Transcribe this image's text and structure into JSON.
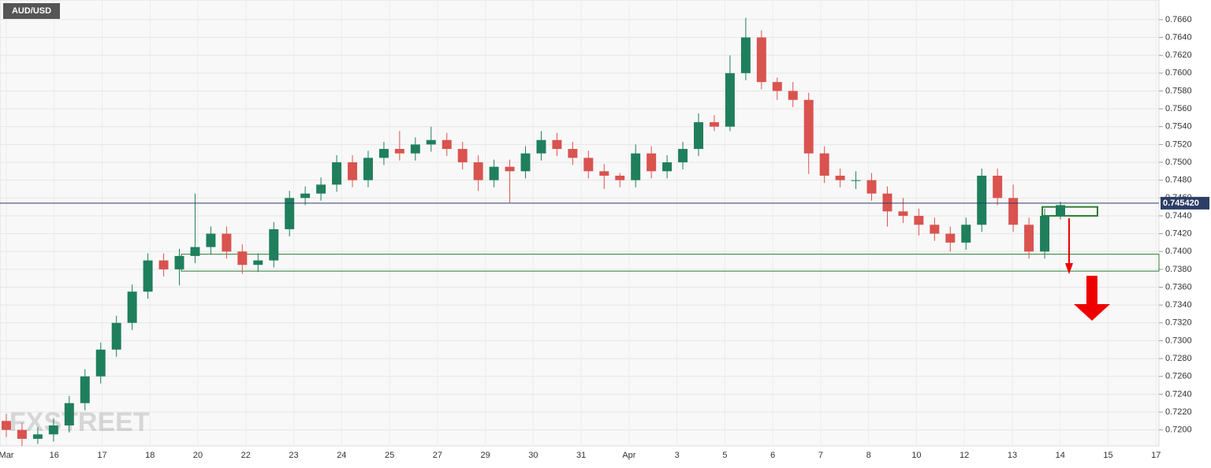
{
  "chart_data": {
    "type": "candlestick",
    "title": "AUD/USD",
    "watermark": "FXSTREET",
    "x_labels": [
      "Mar",
      "16",
      "17",
      "18",
      "20",
      "22",
      "23",
      "24",
      "25",
      "27",
      "29",
      "30",
      "31",
      "Apr",
      "3",
      "5",
      "6",
      "7",
      "8",
      "10",
      "12",
      "13",
      "14",
      "15",
      "17"
    ],
    "open": [
      0.721,
      0.72,
      0.719,
      0.7195,
      0.7205,
      0.723,
      0.726,
      0.729,
      0.732,
      0.7355,
      0.739,
      0.738,
      0.7395,
      0.7405,
      0.742,
      0.74,
      0.7385,
      0.739,
      0.7425,
      0.746,
      0.7465,
      0.7475,
      0.75,
      0.748,
      0.7505,
      0.7515,
      0.751,
      0.752,
      0.7525,
      0.7515,
      0.75,
      0.748,
      0.7495,
      0.749,
      0.751,
      0.7525,
      0.7515,
      0.7505,
      0.749,
      0.7485,
      0.748,
      0.751,
      0.749,
      0.75,
      0.7515,
      0.7545,
      0.754,
      0.76,
      0.764,
      0.759,
      0.758,
      0.757,
      0.751,
      0.7485,
      0.748,
      0.748,
      0.7465,
      0.7445,
      0.744,
      0.743,
      0.742,
      0.741,
      0.743,
      0.7485,
      0.746,
      0.743,
      0.74,
      0.744
    ],
    "high": [
      0.7218,
      0.7208,
      0.7203,
      0.7213,
      0.7238,
      0.7268,
      0.7298,
      0.7328,
      0.7363,
      0.7398,
      0.7398,
      0.7403,
      0.7465,
      0.7428,
      0.7428,
      0.7408,
      0.7398,
      0.7433,
      0.7468,
      0.7473,
      0.7483,
      0.7508,
      0.7508,
      0.7513,
      0.7523,
      0.7535,
      0.7528,
      0.754,
      0.7533,
      0.7523,
      0.7508,
      0.7503,
      0.7503,
      0.7518,
      0.7535,
      0.7533,
      0.7523,
      0.7513,
      0.7498,
      0.7488,
      0.752,
      0.7518,
      0.7508,
      0.7523,
      0.7555,
      0.7553,
      0.762,
      0.7662,
      0.7648,
      0.7595,
      0.759,
      0.7578,
      0.7518,
      0.7493,
      0.749,
      0.7488,
      0.7473,
      0.746,
      0.7448,
      0.7438,
      0.7428,
      0.7438,
      0.7493,
      0.7493,
      0.7475,
      0.7438,
      0.7448,
      0.7456
    ],
    "low": [
      0.7192,
      0.7182,
      0.7184,
      0.7187,
      0.7197,
      0.7222,
      0.7252,
      0.7282,
      0.7312,
      0.7347,
      0.7372,
      0.7362,
      0.7387,
      0.7397,
      0.7392,
      0.7375,
      0.7377,
      0.7382,
      0.7417,
      0.7452,
      0.7457,
      0.7467,
      0.7472,
      0.7472,
      0.7497,
      0.7502,
      0.7502,
      0.7512,
      0.7507,
      0.7492,
      0.7468,
      0.7472,
      0.7455,
      0.7482,
      0.7502,
      0.7507,
      0.7497,
      0.7482,
      0.747,
      0.7472,
      0.7472,
      0.7482,
      0.7482,
      0.7492,
      0.7507,
      0.7535,
      0.7535,
      0.7592,
      0.7582,
      0.757,
      0.7562,
      0.7487,
      0.7477,
      0.7472,
      0.747,
      0.7457,
      0.7428,
      0.7432,
      0.7418,
      0.7412,
      0.74,
      0.7402,
      0.7422,
      0.7452,
      0.7422,
      0.7392,
      0.7392,
      0.7436
    ],
    "close": [
      0.72,
      0.719,
      0.7195,
      0.7205,
      0.723,
      0.726,
      0.729,
      0.732,
      0.7355,
      0.739,
      0.738,
      0.7395,
      0.7405,
      0.742,
      0.74,
      0.7385,
      0.739,
      0.7425,
      0.746,
      0.7465,
      0.7475,
      0.75,
      0.748,
      0.7505,
      0.7515,
      0.751,
      0.752,
      0.7525,
      0.7515,
      0.75,
      0.748,
      0.7495,
      0.749,
      0.751,
      0.7525,
      0.7515,
      0.7505,
      0.749,
      0.7485,
      0.748,
      0.751,
      0.749,
      0.75,
      0.7515,
      0.7545,
      0.754,
      0.76,
      0.764,
      0.759,
      0.758,
      0.757,
      0.751,
      0.7485,
      0.748,
      0.748,
      0.7465,
      0.7445,
      0.744,
      0.743,
      0.742,
      0.741,
      0.743,
      0.7485,
      0.746,
      0.743,
      0.74,
      0.744,
      0.7452
    ],
    "up_color": "#1f7f5c",
    "down_color": "#d9534f",
    "ylim": [
      0.7182,
      0.7682
    ],
    "yticks": [
      {
        "value": 0.72,
        "label": "0.7200"
      },
      {
        "value": 0.722,
        "label": "0.7220"
      },
      {
        "value": 0.724,
        "label": "0.7240"
      },
      {
        "value": 0.726,
        "label": "0.7260"
      },
      {
        "value": 0.728,
        "label": "0.7280"
      },
      {
        "value": 0.73,
        "label": "0.7300"
      },
      {
        "value": 0.732,
        "label": "0.7320"
      },
      {
        "value": 0.734,
        "label": "0.7340"
      },
      {
        "value": 0.736,
        "label": "0.7360"
      },
      {
        "value": 0.738,
        "label": "0.7380"
      },
      {
        "value": 0.74,
        "label": "0.7400"
      },
      {
        "value": 0.742,
        "label": "0.7420"
      },
      {
        "value": 0.744,
        "label": "0.7440"
      },
      {
        "value": 0.746,
        "label": "0.7460"
      },
      {
        "value": 0.748,
        "label": "0.7480"
      },
      {
        "value": 0.75,
        "label": "0.7500"
      },
      {
        "value": 0.752,
        "label": "0.7520"
      },
      {
        "value": 0.754,
        "label": "0.7540"
      },
      {
        "value": 0.756,
        "label": "0.7560"
      },
      {
        "value": 0.758,
        "label": "0.7580"
      },
      {
        "value": 0.76,
        "label": "0.7600"
      },
      {
        "value": 0.762,
        "label": "0.7620"
      },
      {
        "value": 0.764,
        "label": "0.7640"
      },
      {
        "value": 0.766,
        "label": "0.7660"
      }
    ],
    "current_price": {
      "value": 0.74542,
      "label": "0.745420"
    },
    "zones": [
      {
        "low": 0.7378,
        "high": 0.7397
      },
      {
        "low": 0.744,
        "high": 0.745
      }
    ],
    "zone_color": "#2e7d32",
    "grid": true
  }
}
